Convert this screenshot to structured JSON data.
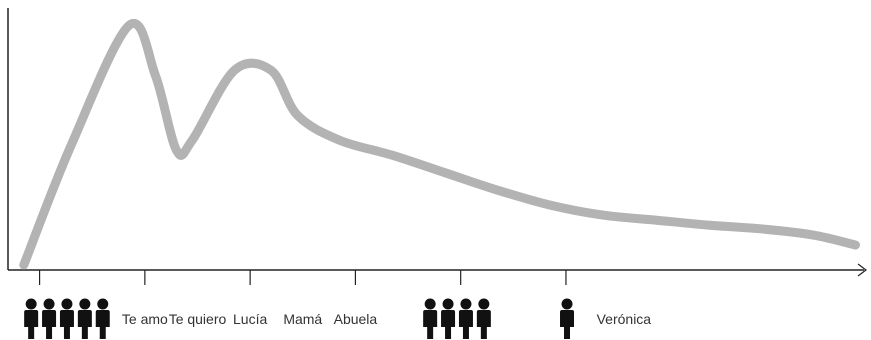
{
  "chart_data": {
    "type": "line",
    "title": "",
    "xlabel": "",
    "ylabel": "",
    "grid": false,
    "legend": "none",
    "x": [
      0,
      0.45,
      1.0,
      1.25,
      1.45,
      1.6,
      2.0,
      2.35,
      2.6,
      3.0,
      3.5,
      4.0,
      4.5,
      5.0,
      5.5,
      6.0,
      6.5,
      7.0,
      7.5,
      7.9
    ],
    "series": [
      {
        "values": [
          0.02,
          0.5,
          0.98,
          0.78,
          0.48,
          0.52,
          0.8,
          0.8,
          0.62,
          0.52,
          0.46,
          0.39,
          0.32,
          0.26,
          0.22,
          0.2,
          0.18,
          0.165,
          0.14,
          0.1
        ]
      }
    ],
    "xlim": [
      -0.15,
      8.0
    ],
    "ylim": [
      0,
      1.05
    ],
    "ticks": [
      0.15,
      1.15,
      2.15,
      3.15,
      4.15,
      5.15
    ],
    "line_color": "#b3b3b3",
    "axis_color": "#222222",
    "icon_color": "#111111",
    "word_labels": [
      {
        "text": "Te amo",
        "x": 1.15
      },
      {
        "text": "Te quiero",
        "x": 1.65
      },
      {
        "text": "Lucía",
        "x": 2.15
      },
      {
        "text": "Mamá",
        "x": 2.65
      },
      {
        "text": "Abuela",
        "x": 3.15
      },
      {
        "text": "Verónica",
        "x": 5.7
      }
    ],
    "person_icons": [
      {
        "name": "person-icon",
        "x": 0.07
      },
      {
        "name": "person-icon",
        "x": 0.24
      },
      {
        "name": "person-icon",
        "x": 0.41
      },
      {
        "name": "person-icon",
        "x": 0.58
      },
      {
        "name": "person-icon",
        "x": 0.75
      },
      {
        "name": "person-icon",
        "x": 3.86
      },
      {
        "name": "person-icon",
        "x": 4.03
      },
      {
        "name": "person-icon",
        "x": 4.2
      },
      {
        "name": "person-icon",
        "x": 4.37
      },
      {
        "name": "person-icon",
        "x": 5.16
      }
    ]
  }
}
